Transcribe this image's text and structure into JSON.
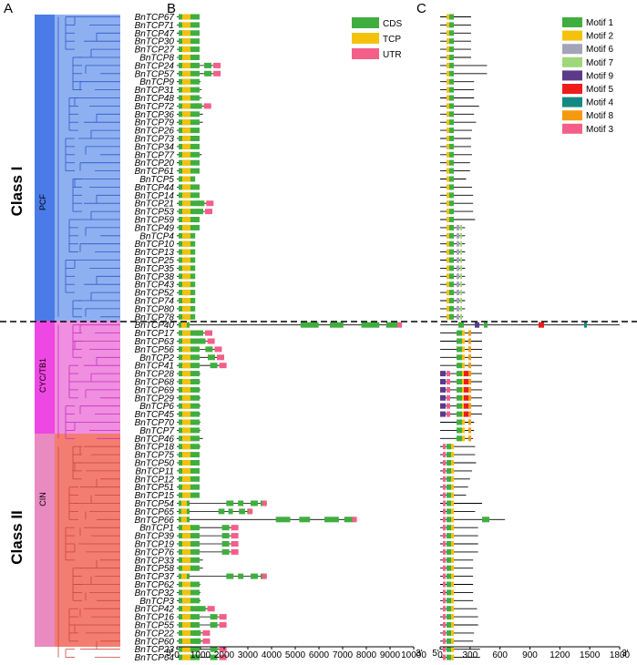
{
  "panel_labels": {
    "a": "A",
    "b": "B",
    "c": "C"
  },
  "classes": {
    "class1": "Class I",
    "class2": "Class II"
  },
  "subclasses": {
    "pcf": "PCF",
    "cyc": "CYC/TB1",
    "cin": "CIN"
  },
  "colors": {
    "pcf": "#4a7be8",
    "pcf_light": "#8fb0f0",
    "cyc": "#ef47e3",
    "cyc_light": "#f08ee0",
    "cin": "#f47d72",
    "cin_light": "#e98ac0",
    "cds": "#3fae3f",
    "tcp": "#f4c20d",
    "utr": "#f45f8a"
  },
  "genes": [
    "BnTCP67",
    "BnTCP71",
    "BnTCP47",
    "BnTCP30",
    "BnTCP27",
    "BnTCP8",
    "BnTCP24",
    "BnTCP57",
    "BnTCP9",
    "BnTCP31",
    "BnTCP48",
    "BnTCP72",
    "BnTCP36",
    "BnTCP79",
    "BnTCP26",
    "BnTCP73",
    "BnTCP34",
    "BnTCP77",
    "BnTCP20",
    "BnTCP61",
    "BnTCP5",
    "BnTCP44",
    "BnTCP14",
    "BnTCP21",
    "BnTCP53",
    "BnTCP59",
    "BnTCP49",
    "BnTCP4",
    "BnTCP10",
    "BnTCP13",
    "BnTCP25",
    "BnTCP35",
    "BnTCP38",
    "BnTCP43",
    "BnTCP52",
    "BnTCP74",
    "BnTCP80",
    "BnTCP78",
    "BnTCP40",
    "BnTCP17",
    "BnTCP63",
    "BnTCP56",
    "BnTCP2",
    "BnTCP41",
    "BnTCP28",
    "BnTCP68",
    "BnTCP69",
    "BnTCP29",
    "BnTCP6",
    "BnTCP45",
    "BnTCP70",
    "BnTCP7",
    "BnTCP46",
    "BnTCP18",
    "BnTCP75",
    "BnTCP50",
    "BnTCP11",
    "BnTCP12",
    "BnTCP51",
    "BnTCP15",
    "BnTCP54",
    "BnTCP65",
    "BnTCP66",
    "BnTCP1",
    "BnTCP39",
    "BnTCP19",
    "BnTCP76",
    "BnTCP33",
    "BnTCP58",
    "BnTCP37",
    "BnTCP62",
    "BnTCP32",
    "BnTCP3",
    "BnTCP42",
    "BnTCP16",
    "BnTCP55",
    "BnTCP22",
    "BnTCP60",
    "BnTCP23",
    "BnTCP64"
  ],
  "gene_lengths": [
    950,
    950,
    950,
    950,
    950,
    950,
    1850,
    1850,
    1000,
    1050,
    1050,
    1450,
    1100,
    1100,
    950,
    950,
    950,
    1050,
    950,
    900,
    700,
    950,
    950,
    1550,
    1500,
    950,
    950,
    700,
    700,
    700,
    700,
    700,
    700,
    700,
    700,
    700,
    700,
    700,
    9500,
    1500,
    1600,
    1900,
    2000,
    2100,
    1000,
    1000,
    1000,
    1000,
    1000,
    1000,
    1000,
    1000,
    1100,
    1000,
    950,
    950,
    950,
    900,
    900,
    900,
    3800,
    3200,
    7600,
    2600,
    2600,
    2600,
    2600,
    1100,
    1100,
    3800,
    1000,
    1000,
    1000,
    1600,
    2100,
    2100,
    1400,
    1400,
    2100,
    2100
  ],
  "b_legend": [
    "CDS",
    "TCP",
    "UTR"
  ],
  "b_axis": {
    "ticks": [
      "0",
      "1000",
      "2000",
      "3000",
      "4000",
      "5000",
      "6000",
      "7000",
      "8000",
      "9000",
      "10000"
    ],
    "five": "5'",
    "three": "3'"
  },
  "c_legend": [
    {
      "label": "Motif 1",
      "color": "#3fae3f"
    },
    {
      "label": "Motif 2",
      "color": "#f4c20d"
    },
    {
      "label": "Motif 6",
      "color": "#a4a4b8"
    },
    {
      "label": "Motif 7",
      "color": "#9ed87a"
    },
    {
      "label": "Motif 9",
      "color": "#5b3a8a"
    },
    {
      "label": "Motif 5",
      "color": "#ee1c1c"
    },
    {
      "label": "Motif 4",
      "color": "#128a82"
    },
    {
      "label": "Motif 8",
      "color": "#f59a10"
    },
    {
      "label": "Motif 3",
      "color": "#f45f8a"
    }
  ],
  "c_axis": {
    "ticks": [
      "0",
      "300",
      "600",
      "900",
      "1200",
      "1500",
      "1800"
    ],
    "five": "5'",
    "three": "3'"
  },
  "protein_lengths": [
    310,
    310,
    310,
    310,
    310,
    310,
    470,
    470,
    340,
    340,
    340,
    390,
    340,
    360,
    320,
    310,
    310,
    320,
    300,
    300,
    260,
    320,
    330,
    330,
    330,
    350,
    250,
    250,
    250,
    250,
    250,
    250,
    250,
    250,
    250,
    250,
    250,
    230,
    1800,
    420,
    420,
    420,
    420,
    420,
    420,
    420,
    420,
    420,
    420,
    420,
    340,
    340,
    330,
    350,
    350,
    360,
    320,
    300,
    280,
    260,
    420,
    350,
    650,
    380,
    380,
    380,
    380,
    330,
    330,
    330,
    330,
    330,
    330,
    370,
    380,
    380,
    340,
    330,
    400,
    400
  ]
}
